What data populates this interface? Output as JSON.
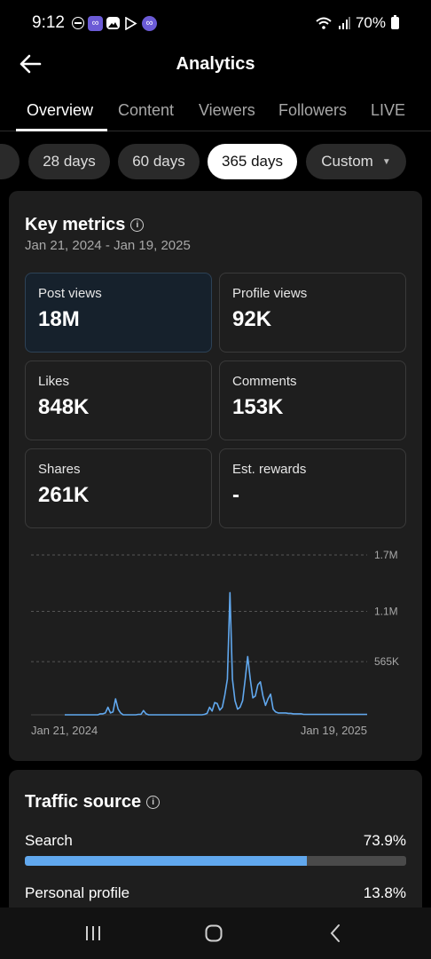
{
  "status_bar": {
    "time": "9:12",
    "battery": "70%",
    "icons": [
      "do-not-disturb-icon",
      "app-icon",
      "gallery-icon",
      "play-store-icon",
      "app-icon",
      "wifi-icon",
      "signal-icon",
      "battery-icon"
    ]
  },
  "header": {
    "title": "Analytics"
  },
  "tabs": [
    {
      "label": "Overview",
      "active": true
    },
    {
      "label": "Content"
    },
    {
      "label": "Viewers"
    },
    {
      "label": "Followers"
    },
    {
      "label": "LIVE"
    }
  ],
  "date_chips": [
    {
      "label": "28 days"
    },
    {
      "label": "60 days"
    },
    {
      "label": "365 days",
      "active": true
    },
    {
      "label": "Custom"
    }
  ],
  "key_metrics": {
    "title": "Key metrics",
    "date_range": "Jan 21, 2024 - Jan 19, 2025",
    "metrics": [
      {
        "label": "Post views",
        "value": "18M",
        "selected": true
      },
      {
        "label": "Profile views",
        "value": "92K"
      },
      {
        "label": "Likes",
        "value": "848K"
      },
      {
        "label": "Comments",
        "value": "153K"
      },
      {
        "label": "Shares",
        "value": "261K"
      },
      {
        "label": "Est. rewards",
        "value": "-"
      }
    ]
  },
  "chart_data": {
    "type": "line",
    "series": [
      {
        "values": [
          0,
          0,
          0,
          0,
          0,
          0,
          0,
          0,
          0,
          0,
          0,
          0,
          0,
          0,
          10000,
          10000,
          20000,
          80000,
          20000,
          30000,
          170000,
          60000,
          20000,
          0,
          0,
          0,
          0,
          0,
          0,
          5000,
          5000,
          45000,
          10000,
          0,
          0,
          0,
          0,
          0,
          0,
          0,
          0,
          0,
          0,
          0,
          0,
          0,
          0,
          0,
          0,
          0,
          0,
          0,
          0,
          0,
          0,
          5000,
          15000,
          80000,
          40000,
          130000,
          120000,
          50000,
          80000,
          210000,
          380000,
          1300000,
          380000,
          150000,
          60000,
          80000,
          150000,
          380000,
          620000,
          380000,
          180000,
          200000,
          320000,
          350000,
          200000,
          100000,
          170000,
          220000,
          60000,
          30000,
          20000,
          20000,
          20000,
          20000,
          15000,
          15000,
          10000,
          10000,
          10000,
          10000,
          5000,
          5000,
          5000,
          5000,
          5000,
          5000,
          5000,
          5000,
          5000,
          5000,
          5000,
          5000,
          5000,
          5000,
          5000,
          5000,
          5000,
          5000,
          5000,
          5000,
          5000,
          5000,
          5000,
          5000,
          5000,
          5000
        ]
      }
    ],
    "y_ticks": [
      "1.7M",
      "1.1M",
      "565K"
    ],
    "y_tick_values": [
      1700000,
      1100000,
      565000
    ],
    "x_labels": [
      "Jan 21, 2024",
      "Jan 19, 2025"
    ],
    "ylim": [
      0,
      1700000
    ],
    "grid": true,
    "color": "#61a8ee"
  },
  "traffic_source": {
    "title": "Traffic source",
    "items": [
      {
        "label": "Search",
        "value": "73.9%",
        "fraction": 0.739
      },
      {
        "label": "Personal profile",
        "value": "13.8%",
        "fraction": 0.138
      }
    ]
  },
  "nav_bar": {
    "icons": [
      "recent-apps-icon",
      "home-icon",
      "back-icon"
    ]
  }
}
